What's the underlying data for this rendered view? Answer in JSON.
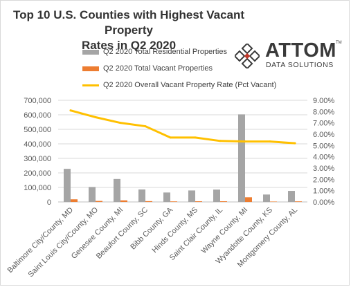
{
  "chart_data": {
    "type": "bar",
    "title": "Top 10 U.S. Counties with Highest Vacant Property Rates in Q2 2020",
    "categories": [
      "Baltimore City/County, MD",
      "Saint Louis City/County, MO",
      "Genesee County, MI",
      "Beaufort County, SC",
      "Bibb County, GA",
      "Hinds County, MS",
      "Saint Clair County, IL",
      "Wayne County, MI",
      "Wyandotte County, KS",
      "Montgomery County, AL"
    ],
    "series": [
      {
        "name": "Q2 2020 Total Residential Properties",
        "kind": "bar",
        "axis": "left",
        "color": "#a5a5a5",
        "values": [
          228000,
          103000,
          158000,
          86000,
          65000,
          79000,
          85000,
          603000,
          51000,
          76000
        ]
      },
      {
        "name": "Q2 2020 Total Vacant Properties",
        "kind": "bar",
        "axis": "left",
        "color": "#ed7d31",
        "values": [
          18000,
          7000,
          11000,
          5500,
          3700,
          4500,
          4600,
          32000,
          2700,
          3900
        ]
      },
      {
        "name": "Q2 2020 Overall Vacant Property Rate (Pct Vacant)",
        "kind": "line",
        "axis": "right",
        "color": "#ffc000",
        "values": [
          8.1,
          7.5,
          7.0,
          6.7,
          5.7,
          5.7,
          5.4,
          5.35,
          5.35,
          5.2
        ]
      }
    ],
    "y_left": {
      "min": 0,
      "max": 700000,
      "ticks": [
        "0",
        "100,000",
        "200,000",
        "300,000",
        "400,000",
        "500,000",
        "600,000",
        "700,000"
      ]
    },
    "y_right": {
      "min": 0,
      "max": 9,
      "ticks": [
        "0.00%",
        "1.00%",
        "2.00%",
        "3.00%",
        "4.00%",
        "5.00%",
        "6.00%",
        "7.00%",
        "8.00%",
        "9.00%"
      ]
    },
    "grid": true,
    "legend_position": "top"
  },
  "title_lines": [
    "Top 10 U.S. Counties with Highest Vacant Property",
    "Rates in Q2 2020"
  ],
  "logo": {
    "word": "ATTOM",
    "tm": "TM",
    "subtitle": "DATA SOLUTIONS",
    "mark_icon": "attom-diamond-mark-icon",
    "text_color": "#3a3a3a",
    "accent_color": "#c0392b"
  }
}
